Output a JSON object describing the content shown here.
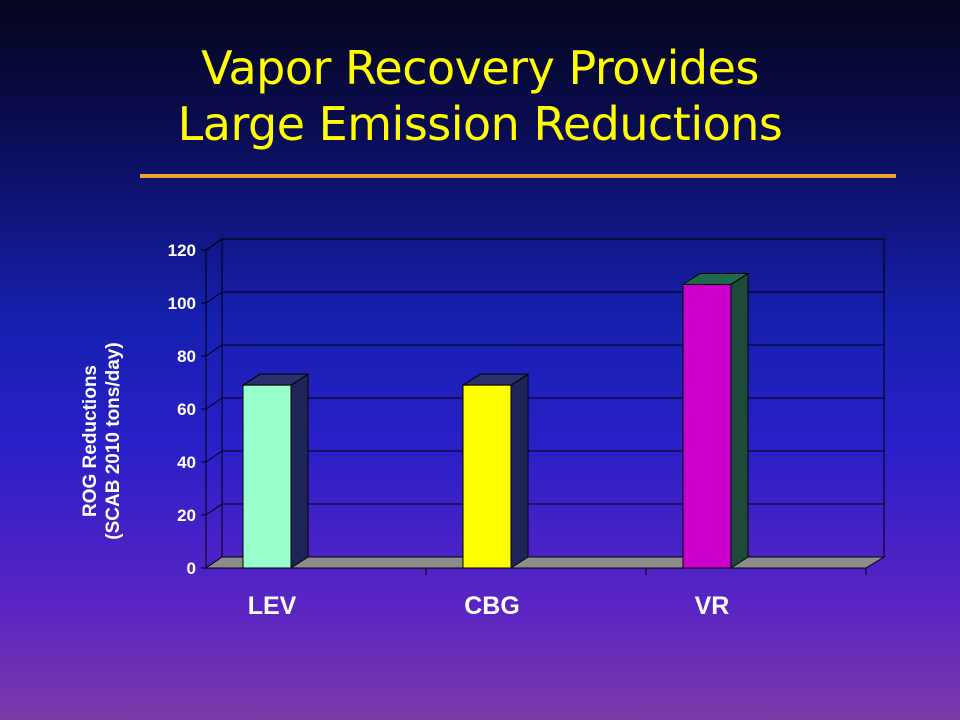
{
  "slide": {
    "title_line1": "Vapor Recovery Provides",
    "title_line2": "Large Emission Reductions"
  },
  "colors": {
    "title": "#ffff00",
    "rule": "#f0a030",
    "labels": "#ffffff"
  },
  "chart_data": {
    "type": "bar",
    "categories": [
      "LEV",
      "CBG",
      "VR"
    ],
    "values": [
      69,
      69,
      107
    ],
    "bar_colors": [
      "#99ffcc",
      "#ffff00",
      "#cc00cc"
    ],
    "ylabel_line1": "ROG Reductions",
    "ylabel_line2": "(SCAB 2010 tons/day)",
    "ylim": [
      0,
      120
    ],
    "yticks": [
      0,
      20,
      40,
      60,
      80,
      100,
      120
    ],
    "grid": true,
    "three_d": true
  }
}
